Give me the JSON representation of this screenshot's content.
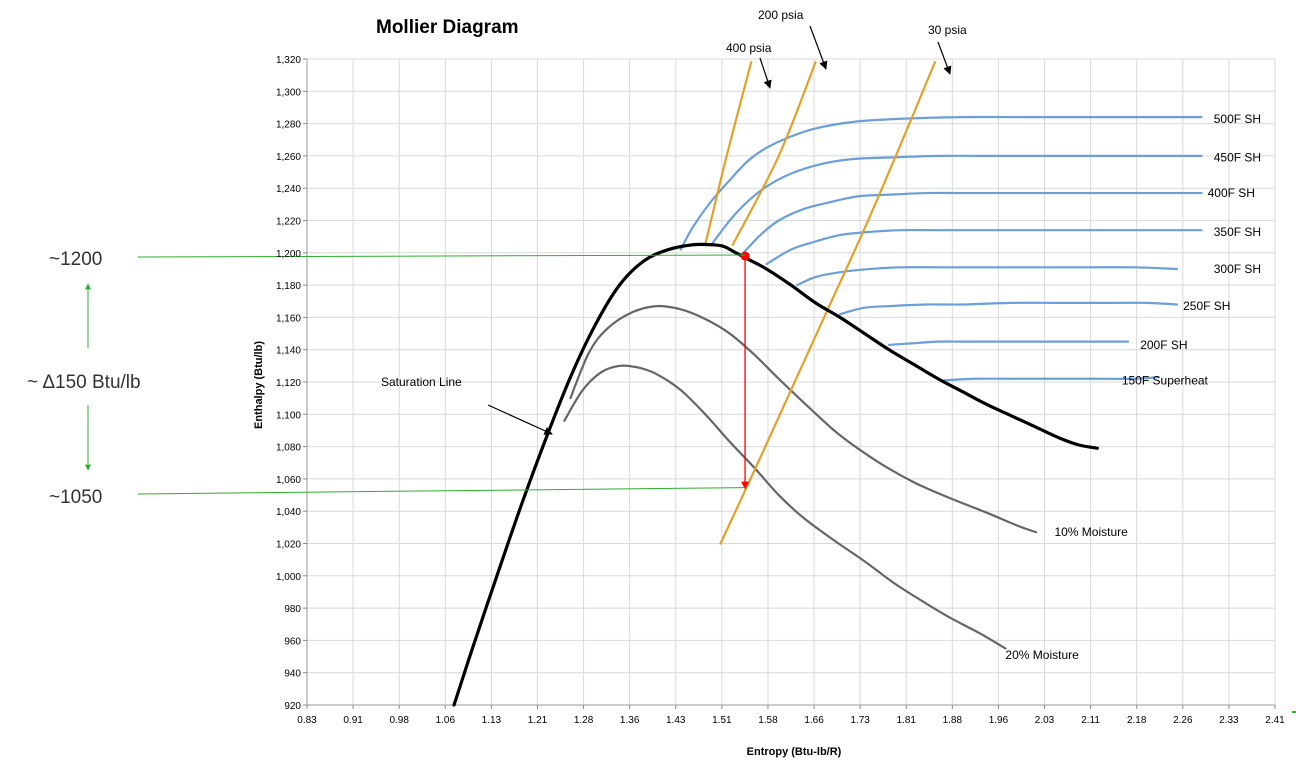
{
  "chart_data": {
    "type": "line",
    "title": "Mollier Diagram",
    "xlabel": "Entropy (Btu-lb/R)",
    "ylabel": "Enthalpy (Btu/lb)",
    "xlim": [
      0.83,
      2.41
    ],
    "ylim": [
      920,
      1320
    ],
    "grid": true,
    "x_ticks": [
      "0.83",
      "0.91",
      "0.98",
      "1.06",
      "1.13",
      "1.21",
      "1.28",
      "1.36",
      "1.43",
      "1.51",
      "1.58",
      "1.66",
      "1.73",
      "1.81",
      "1.88",
      "1.96",
      "2.03",
      "2.11",
      "2.18",
      "2.26",
      "2.33",
      "2.41"
    ],
    "y_ticks": [
      "920",
      "940",
      "960",
      "980",
      "1,000",
      "1,020",
      "1,040",
      "1,060",
      "1,080",
      "1,100",
      "1,120",
      "1,140",
      "1,160",
      "1,180",
      "1,200",
      "1,220",
      "1,240",
      "1,260",
      "1,280",
      "1,300",
      "1,320"
    ],
    "colors": {
      "saturation": "#000000",
      "moisture": "#666666",
      "superheat": "#6a9fda",
      "pressure": "#e3a029",
      "process": "#ff0000",
      "guide": "#2eae2e"
    },
    "series": [
      {
        "name": "Saturation Line",
        "group": "saturation",
        "x": [
          1.07,
          1.1,
          1.14,
          1.18,
          1.22,
          1.26,
          1.3,
          1.34,
          1.38,
          1.42,
          1.46,
          1.49,
          1.51,
          1.53,
          1.55,
          1.58,
          1.62,
          1.66,
          1.7,
          1.74,
          1.78,
          1.82,
          1.86,
          1.9,
          1.94,
          1.98,
          2.02,
          2.06,
          2.09,
          2.12
        ],
        "y": [
          920,
          955,
          1000,
          1044,
          1085,
          1123,
          1155,
          1180,
          1195,
          1202,
          1205,
          1205,
          1204,
          1200,
          1196,
          1190,
          1180,
          1169,
          1160,
          1150,
          1140,
          1131,
          1122,
          1114,
          1106,
          1099,
          1092,
          1085,
          1081,
          1079
        ]
      },
      {
        "name": "10% Moisture",
        "group": "moisture",
        "x": [
          1.26,
          1.29,
          1.32,
          1.36,
          1.4,
          1.44,
          1.48,
          1.52,
          1.56,
          1.6,
          1.65,
          1.7,
          1.76,
          1.82,
          1.88,
          1.94,
          1.99,
          2.02
        ],
        "y": [
          1110,
          1138,
          1153,
          1163,
          1167,
          1165,
          1159,
          1150,
          1137,
          1122,
          1104,
          1087,
          1071,
          1058,
          1048,
          1039,
          1031,
          1027
        ]
      },
      {
        "name": "20% Moisture",
        "group": "moisture",
        "x": [
          1.25,
          1.28,
          1.31,
          1.34,
          1.37,
          1.4,
          1.44,
          1.48,
          1.52,
          1.56,
          1.6,
          1.64,
          1.69,
          1.74,
          1.79,
          1.84,
          1.88,
          1.93,
          1.97
        ],
        "y": [
          1096,
          1115,
          1126,
          1130,
          1129,
          1125,
          1115,
          1100,
          1083,
          1067,
          1050,
          1036,
          1022,
          1009,
          995,
          983,
          974,
          964,
          955
        ]
      },
      {
        "name": "500F SH",
        "group": "superheat",
        "x": [
          1.44,
          1.46,
          1.49,
          1.52,
          1.55,
          1.58,
          1.62,
          1.66,
          1.72,
          1.8,
          1.9,
          2.0,
          2.1,
          2.2,
          2.29
        ],
        "y": [
          1202,
          1216,
          1232,
          1245,
          1257,
          1265,
          1272,
          1277,
          1281,
          1283,
          1284,
          1284,
          1284,
          1284,
          1284
        ]
      },
      {
        "name": "450F SH",
        "group": "superheat",
        "x": [
          1.49,
          1.52,
          1.55,
          1.58,
          1.62,
          1.67,
          1.72,
          1.78,
          1.86,
          1.96,
          2.06,
          2.16,
          2.29
        ],
        "y": [
          1205,
          1220,
          1232,
          1241,
          1249,
          1255,
          1258,
          1259,
          1260,
          1260,
          1260,
          1260,
          1260
        ]
      },
      {
        "name": "400F SH",
        "group": "superheat",
        "x": [
          1.54,
          1.57,
          1.6,
          1.64,
          1.68,
          1.73,
          1.78,
          1.84,
          1.9,
          2.0,
          2.1,
          2.2,
          2.29
        ],
        "y": [
          1199,
          1211,
          1220,
          1227,
          1231,
          1235,
          1236,
          1237,
          1237,
          1237,
          1237,
          1237,
          1237
        ]
      },
      {
        "name": "350F SH",
        "group": "superheat",
        "x": [
          1.58,
          1.62,
          1.66,
          1.7,
          1.75,
          1.8,
          1.86,
          1.92,
          2.0,
          2.1,
          2.2,
          2.29
        ],
        "y": [
          1193,
          1202,
          1207,
          1211,
          1213,
          1214,
          1214,
          1214,
          1214,
          1214,
          1214,
          1214
        ]
      },
      {
        "name": "300F SH",
        "group": "superheat",
        "x": [
          1.63,
          1.66,
          1.7,
          1.75,
          1.8,
          1.86,
          1.92,
          2.0,
          2.1,
          2.18,
          2.25
        ],
        "y": [
          1180,
          1185,
          1188,
          1190,
          1191,
          1191,
          1191,
          1191,
          1191,
          1191,
          1190
        ]
      },
      {
        "name": "250F SH",
        "group": "superheat",
        "x": [
          1.7,
          1.74,
          1.78,
          1.84,
          1.9,
          1.98,
          2.06,
          2.14,
          2.2,
          2.25
        ],
        "y": [
          1162,
          1166,
          1167,
          1168,
          1168,
          1169,
          1169,
          1169,
          1169,
          1168
        ]
      },
      {
        "name": "200F SH",
        "group": "superheat",
        "x": [
          1.78,
          1.82,
          1.86,
          1.9,
          1.96,
          2.04,
          2.12,
          2.17
        ],
        "y": [
          1143,
          1144,
          1145,
          1145,
          1145,
          1145,
          1145,
          1145
        ]
      },
      {
        "name": "150F Superheat",
        "group": "superheat",
        "x": [
          1.87,
          1.92,
          1.98,
          2.05,
          2.12,
          2.18,
          2.22
        ],
        "y": [
          1121,
          1122,
          1122,
          1122,
          1122,
          1122,
          1123
        ]
      },
      {
        "name": "400 psia",
        "group": "pressure",
        "x": [
          1.48,
          1.515,
          1.555
        ],
        "y": [
          1205,
          1260,
          1318
        ]
      },
      {
        "name": "200 psia",
        "group": "pressure",
        "x": [
          1.525,
          1.6,
          1.66
        ],
        "y": [
          1205,
          1260,
          1318
        ]
      },
      {
        "name": "30 psia",
        "group": "pressure",
        "x": [
          1.505,
          1.56,
          1.62,
          1.68,
          1.74,
          1.8,
          1.855
        ],
        "y": [
          1020,
          1065,
          1115,
          1165,
          1215,
          1268,
          1318
        ]
      }
    ],
    "process_line": {
      "x": [
        1.545,
        1.545
      ],
      "y": [
        1198,
        1054
      ]
    },
    "process_points": [
      {
        "x": 1.545,
        "y": 1198
      }
    ],
    "series_labels": [
      {
        "text": "500F SH",
        "x": 2.31,
        "y": 1283
      },
      {
        "text": "450F SH",
        "x": 2.31,
        "y": 1259
      },
      {
        "text": "400F SH",
        "x": 2.3,
        "y": 1237
      },
      {
        "text": "350F SH",
        "x": 2.31,
        "y": 1213
      },
      {
        "text": "300F SH",
        "x": 2.31,
        "y": 1190
      },
      {
        "text": "250F SH",
        "x": 2.26,
        "y": 1167
      },
      {
        "text": "200F SH",
        "x": 2.19,
        "y": 1143
      },
      {
        "text": "150F Superheat",
        "x": 2.16,
        "y": 1121
      },
      {
        "text": "10% Moisture",
        "x": 2.05,
        "y": 1027
      },
      {
        "text": "20% Moisture",
        "x": 1.97,
        "y": 951
      }
    ],
    "annotations": {
      "saturation_label": "Saturation Line",
      "pressure_labels": [
        "400 psia",
        "200 psia",
        "30 psia"
      ],
      "guide_high": "~1200",
      "guide_low": "~1050",
      "delta": "~ Δ150 Btu/lb"
    }
  }
}
